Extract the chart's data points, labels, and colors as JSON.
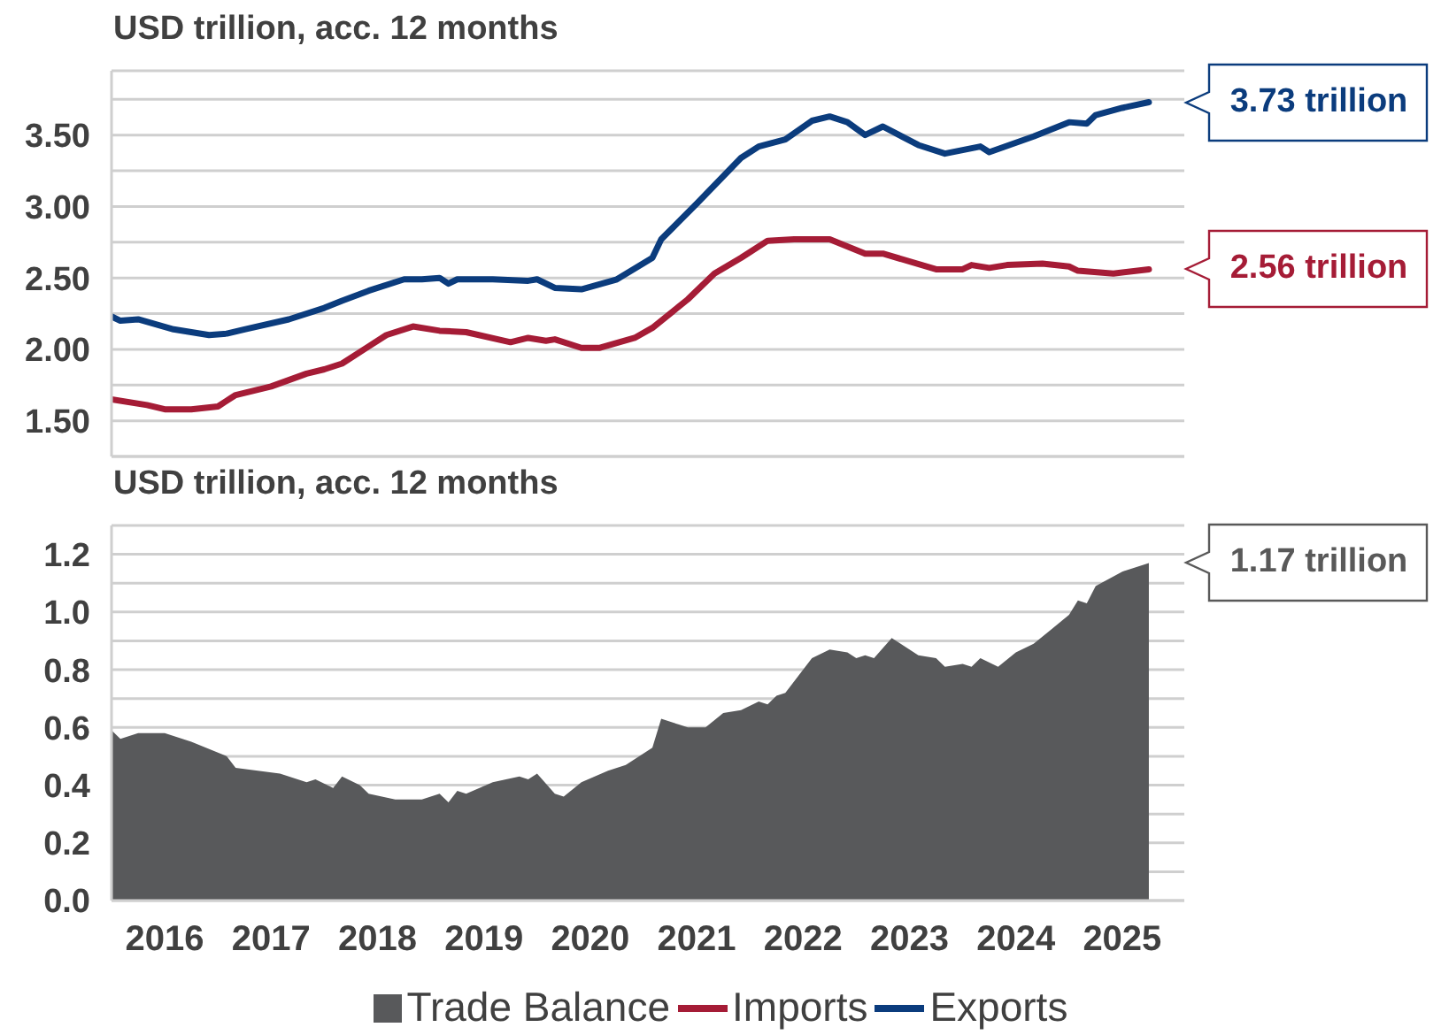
{
  "chart_data": [
    {
      "type": "line",
      "title": "USD trillion, acc. 12 months",
      "xlim": [
        "2016-01",
        "2026-02"
      ],
      "ylim": [
        1.25,
        3.95
      ],
      "yticks": [
        {
          "value": 1.25,
          "label": null
        },
        {
          "value": 1.5,
          "label": "1.50"
        },
        {
          "value": 1.75,
          "label": null
        },
        {
          "value": 2,
          "label": "2.00"
        },
        {
          "value": 2.25,
          "label": null
        },
        {
          "value": 2.5,
          "label": "2.50"
        },
        {
          "value": 2.75,
          "label": null
        },
        {
          "value": 3,
          "label": "3.00"
        },
        {
          "value": 3.25,
          "label": null
        },
        {
          "value": 3.5,
          "label": "3.50"
        },
        {
          "value": 3.75,
          "label": null
        }
      ],
      "grid": "y",
      "tick_labels": "y",
      "legend": "bottom",
      "line_style": "solid",
      "marker": "none",
      "annotations": [
        {
          "text": "3.73 trillion",
          "x": "2025-10",
          "y": 3.73
        },
        {
          "text": "2.56 trillion",
          "x": "2025-10",
          "y": 2.56
        }
      ],
      "series": [
        {
          "name": "Imports",
          "color": "#a51c36",
          "x": [
            "2016-01",
            "2016-05",
            "2016-07",
            "2016-10",
            "2017-01",
            "2017-03",
            "2017-07",
            "2017-11",
            "2018-01",
            "2018-03",
            "2018-06",
            "2018-08",
            "2018-11",
            "2019-02",
            "2019-05",
            "2019-10",
            "2019-12",
            "2020-02",
            "2020-03",
            "2020-06",
            "2020-08",
            "2020-12",
            "2021-02",
            "2021-06",
            "2021-09",
            "2021-12",
            "2022-03",
            "2022-06",
            "2022-10",
            "2023-02",
            "2023-04",
            "2023-10",
            "2024-01",
            "2024-02",
            "2024-04",
            "2024-06",
            "2024-10",
            "2025-01",
            "2025-02",
            "2025-06",
            "2025-10"
          ],
          "values": [
            1.65,
            1.61,
            1.58,
            1.58,
            1.6,
            1.68,
            1.74,
            1.83,
            1.86,
            1.9,
            2.02,
            2.1,
            2.16,
            2.13,
            2.12,
            2.05,
            2.08,
            2.06,
            2.07,
            2.01,
            2.01,
            2.08,
            2.15,
            2.35,
            2.53,
            2.64,
            2.76,
            2.77,
            2.77,
            2.67,
            2.67,
            2.56,
            2.56,
            2.59,
            2.57,
            2.59,
            2.6,
            2.58,
            2.55,
            2.53,
            2.56
          ]
        },
        {
          "name": "Exports",
          "color": "#0b3c7d",
          "x": [
            "2016-01",
            "2016-02",
            "2016-04",
            "2016-08",
            "2016-12",
            "2017-02",
            "2017-04",
            "2017-09",
            "2018-01",
            "2018-03",
            "2018-06",
            "2018-10",
            "2018-12",
            "2019-02",
            "2019-03",
            "2019-04",
            "2019-08",
            "2019-12",
            "2020-01",
            "2020-03",
            "2020-06",
            "2020-10",
            "2021-02",
            "2021-03",
            "2021-07",
            "2021-12",
            "2022-02",
            "2022-05",
            "2022-08",
            "2022-10",
            "2022-12",
            "2023-02",
            "2023-04",
            "2023-08",
            "2023-11",
            "2024-03",
            "2024-04",
            "2024-09",
            "2025-01",
            "2025-03",
            "2025-04",
            "2025-07",
            "2025-10"
          ],
          "values": [
            2.23,
            2.2,
            2.21,
            2.14,
            2.1,
            2.11,
            2.14,
            2.21,
            2.29,
            2.34,
            2.41,
            2.49,
            2.49,
            2.5,
            2.46,
            2.49,
            2.49,
            2.48,
            2.49,
            2.43,
            2.42,
            2.49,
            2.64,
            2.77,
            3.02,
            3.34,
            3.42,
            3.47,
            3.6,
            3.63,
            3.59,
            3.5,
            3.56,
            3.43,
            3.37,
            3.42,
            3.38,
            3.49,
            3.59,
            3.58,
            3.64,
            3.69,
            3.73
          ]
        }
      ]
    },
    {
      "type": "area",
      "title": "USD trillion, acc. 12 months",
      "xlim": [
        "2016-01",
        "2026-02"
      ],
      "xticks": [
        {
          "value": "2016-07",
          "label": "2016"
        },
        {
          "value": "2017-07",
          "label": "2017"
        },
        {
          "value": "2018-07",
          "label": "2018"
        },
        {
          "value": "2019-07",
          "label": "2019"
        },
        {
          "value": "2020-07",
          "label": "2020"
        },
        {
          "value": "2021-07",
          "label": "2021"
        },
        {
          "value": "2022-07",
          "label": "2022"
        },
        {
          "value": "2023-07",
          "label": "2023"
        },
        {
          "value": "2024-07",
          "label": "2024"
        },
        {
          "value": "2025-07",
          "label": "2025"
        }
      ],
      "ylim": [
        0,
        1.3
      ],
      "yticks": [
        {
          "value": 0,
          "label": "0.0"
        },
        {
          "value": 0.1,
          "label": null
        },
        {
          "value": 0.2,
          "label": "0.2"
        },
        {
          "value": 0.3,
          "label": null
        },
        {
          "value": 0.4,
          "label": "0.4"
        },
        {
          "value": 0.5,
          "label": null
        },
        {
          "value": 0.6,
          "label": "0.6"
        },
        {
          "value": 0.7,
          "label": null
        },
        {
          "value": 0.8,
          "label": "0.8"
        },
        {
          "value": 0.9,
          "label": null
        },
        {
          "value": 1,
          "label": "1.0"
        },
        {
          "value": 1.1,
          "label": null
        },
        {
          "value": 1.2,
          "label": "1.2"
        }
      ],
      "grid": "y",
      "legend": "bottom",
      "annotations": [
        {
          "text": "1.17 trillion",
          "x": "2025-10",
          "y": 1.17
        }
      ],
      "series": [
        {
          "name": "Trade Balance",
          "color": "#58595b",
          "x": [
            "2016-01",
            "2016-02",
            "2016-04",
            "2016-07",
            "2016-10",
            "2017-02",
            "2017-03",
            "2017-08",
            "2017-11",
            "2017-12",
            "2018-02",
            "2018-03",
            "2018-05",
            "2018-06",
            "2018-09",
            "2018-12",
            "2019-02",
            "2019-03",
            "2019-04",
            "2019-05",
            "2019-08",
            "2019-11",
            "2019-12",
            "2020-01",
            "2020-03",
            "2020-04",
            "2020-06",
            "2020-09",
            "2020-11",
            "2021-02",
            "2021-03",
            "2021-05",
            "2021-06",
            "2021-08",
            "2021-10",
            "2021-12",
            "2022-02",
            "2022-03",
            "2022-04",
            "2022-05",
            "2022-08",
            "2022-10",
            "2022-12",
            "2023-01",
            "2023-02",
            "2023-03",
            "2023-05",
            "2023-08",
            "2023-10",
            "2023-11",
            "2024-01",
            "2024-02",
            "2024-03",
            "2024-05",
            "2024-07",
            "2024-09",
            "2024-11",
            "2025-01",
            "2025-02",
            "2025-03",
            "2025-04",
            "2025-07",
            "2025-10"
          ],
          "values": [
            0.59,
            0.56,
            0.58,
            0.58,
            0.55,
            0.5,
            0.46,
            0.44,
            0.41,
            0.42,
            0.39,
            0.43,
            0.4,
            0.37,
            0.35,
            0.35,
            0.37,
            0.34,
            0.38,
            0.37,
            0.41,
            0.43,
            0.42,
            0.44,
            0.37,
            0.36,
            0.41,
            0.45,
            0.47,
            0.53,
            0.63,
            0.61,
            0.6,
            0.6,
            0.65,
            0.66,
            0.69,
            0.68,
            0.71,
            0.72,
            0.84,
            0.87,
            0.86,
            0.84,
            0.85,
            0.84,
            0.91,
            0.85,
            0.84,
            0.81,
            0.82,
            0.81,
            0.84,
            0.81,
            0.86,
            0.89,
            0.94,
            0.99,
            1.04,
            1.03,
            1.09,
            1.14,
            1.17
          ]
        }
      ]
    }
  ]
}
